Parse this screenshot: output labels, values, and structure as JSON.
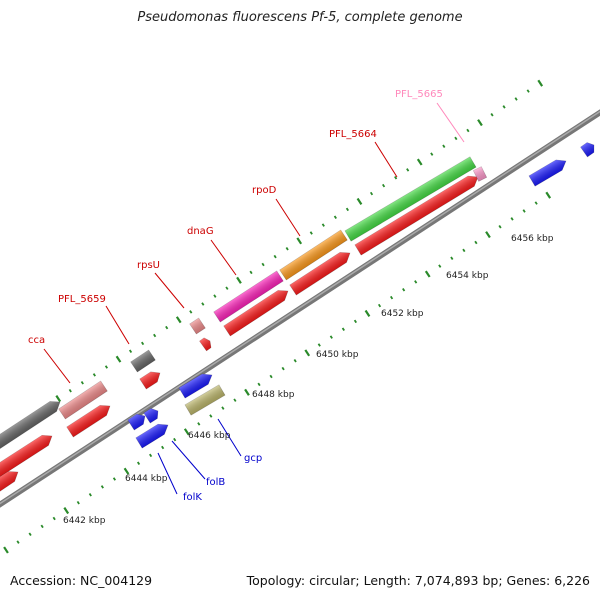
{
  "title": "Pseudomonas fluorescens Pf-5, complete genome",
  "accession": "Accession: NC_004129",
  "summary": "Topology: circular; Length: 7,074,893 bp; Genes: 6,226",
  "colors": {
    "backbone": "#888888",
    "tick": "#2a8a2a",
    "red": "#ff1a1a",
    "blue": "#1a1aff",
    "green": "#44dd44",
    "orange": "#ff9a1a",
    "magenta": "#ff22bb",
    "gray": "#666666",
    "salmon": "#f08a8a",
    "khaki": "#bdb76b",
    "lightpink": "#ff99cc",
    "label_red": "#cc0000",
    "label_blue": "#0000cc",
    "label_pink": "#ff88bb"
  },
  "kbp_labels": [
    "6442 kbp",
    "6444 kbp",
    "6446 kbp",
    "6448 kbp",
    "6450 kbp",
    "6452 kbp",
    "6454 kbp",
    "6456 kbp"
  ],
  "gene_labels": [
    {
      "text": "cca",
      "color": "label_red"
    },
    {
      "text": "PFL_5659",
      "color": "label_red"
    },
    {
      "text": "rpsU",
      "color": "label_red"
    },
    {
      "text": "dnaG",
      "color": "label_red"
    },
    {
      "text": "rpoD",
      "color": "label_red"
    },
    {
      "text": "PFL_5664",
      "color": "label_red"
    },
    {
      "text": "PFL_5665",
      "color": "label_pink"
    },
    {
      "text": "folK",
      "color": "label_blue"
    },
    {
      "text": "folB",
      "color": "label_blue"
    },
    {
      "text": "gcp",
      "color": "label_blue"
    }
  ]
}
